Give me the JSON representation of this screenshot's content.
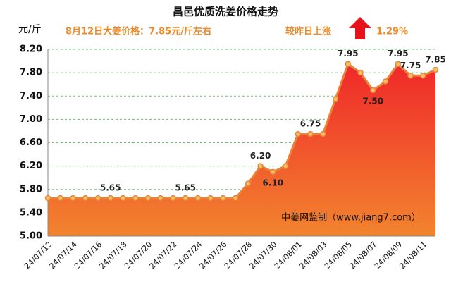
{
  "chart_data": {
    "type": "area-line",
    "title": "昌邑优质洗姜价格走势",
    "y_unit": "元/斤",
    "subtitle": "8月12日大姜价格：7.85元/斤左右",
    "change_text": "较昨日上涨",
    "change_value": "1.29%",
    "watermark": "中姜网监制（www.jiang7.com）",
    "categories": [
      "24/07/12",
      null,
      "24/07/14",
      null,
      "24/07/16",
      null,
      "24/07/18",
      null,
      "24/07/20",
      null,
      "24/07/22",
      null,
      "24/07/24",
      null,
      "24/07/26",
      null,
      "24/07/28",
      null,
      "24/07/30",
      null,
      "24/08/01",
      null,
      "24/08/03",
      null,
      "24/08/05",
      null,
      "24/08/07",
      null,
      "24/08/09",
      null,
      "24/08/11",
      null
    ],
    "values": [
      5.65,
      5.65,
      5.65,
      5.65,
      5.65,
      5.65,
      5.65,
      5.65,
      5.65,
      5.65,
      5.65,
      5.65,
      5.65,
      5.65,
      5.65,
      5.65,
      5.9,
      6.2,
      6.1,
      6.2,
      6.75,
      6.75,
      6.75,
      7.35,
      7.95,
      7.8,
      7.5,
      7.65,
      7.95,
      7.75,
      7.75,
      7.85
    ],
    "value_labels": [
      null,
      null,
      null,
      null,
      null,
      "5.65",
      null,
      null,
      null,
      null,
      null,
      "5.65",
      null,
      null,
      null,
      null,
      null,
      "6.20",
      "6.10",
      null,
      null,
      "6.75",
      null,
      null,
      "7.95",
      null,
      "7.50",
      null,
      "7.95",
      "7.75",
      null,
      "7.85"
    ],
    "color": "#e8843a",
    "ylim": [
      5.0,
      8.2
    ],
    "yticks": [
      {
        "value": 5.0,
        "label": "5.00"
      },
      {
        "value": 5.4,
        "label": "5.40"
      },
      {
        "value": 5.8,
        "label": "5.80"
      },
      {
        "value": 6.2,
        "label": "6.20"
      },
      {
        "value": 6.6,
        "label": "6.60"
      },
      {
        "value": 7.0,
        "label": "7.00"
      },
      {
        "value": 7.4,
        "label": "7.40"
      },
      {
        "value": 7.8,
        "label": "7.80"
      },
      {
        "value": 8.2,
        "label": "8.20"
      }
    ],
    "grid": true
  }
}
